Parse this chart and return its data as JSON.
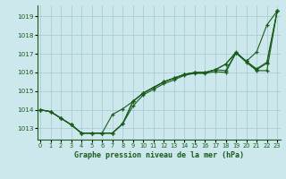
{
  "title": "Graphe pression niveau de la mer (hPa)",
  "bg_color": "#cce8ec",
  "grid_color": "#aacdd4",
  "line_color": "#1a5c1a",
  "x_ticks": [
    0,
    1,
    2,
    3,
    4,
    5,
    6,
    7,
    8,
    9,
    10,
    11,
    12,
    13,
    14,
    15,
    16,
    17,
    18,
    19,
    20,
    21,
    22,
    23
  ],
  "y_ticks": [
    1013,
    1014,
    1015,
    1016,
    1017,
    1018,
    1019
  ],
  "ylim": [
    1012.4,
    1019.6
  ],
  "xlim": [
    -0.3,
    23.3
  ],
  "series": [
    [
      1014.0,
      1013.9,
      1013.55,
      1013.2,
      1012.75,
      1012.75,
      1012.75,
      1012.75,
      1013.25,
      1014.2,
      1014.8,
      1015.1,
      1015.4,
      1015.6,
      1015.85,
      1015.95,
      1015.95,
      1016.05,
      1016.0,
      1017.05,
      1016.55,
      1016.1,
      1016.1,
      1019.3
    ],
    [
      1014.0,
      1013.9,
      1013.55,
      1013.2,
      1012.75,
      1012.75,
      1012.75,
      1012.75,
      1013.25,
      1014.45,
      1014.9,
      1015.2,
      1015.5,
      1015.7,
      1015.9,
      1016.0,
      1016.0,
      1016.15,
      1016.45,
      1017.05,
      1016.6,
      1016.15,
      1016.5,
      1019.3
    ],
    [
      1014.0,
      1013.9,
      1013.55,
      1013.2,
      1012.75,
      1012.75,
      1012.75,
      1013.75,
      1014.05,
      1014.45,
      1014.9,
      1015.2,
      1015.5,
      1015.7,
      1015.9,
      1016.0,
      1016.0,
      1016.15,
      1016.1,
      1017.05,
      1016.6,
      1016.2,
      1016.55,
      1019.3
    ],
    [
      1014.0,
      1013.9,
      1013.55,
      1013.2,
      1012.75,
      1012.75,
      1012.75,
      1012.75,
      1013.25,
      1014.45,
      1014.9,
      1015.2,
      1015.5,
      1015.7,
      1015.9,
      1016.0,
      1016.0,
      1016.15,
      1016.45,
      1017.1,
      1016.6,
      1017.1,
      1018.55,
      1019.3
    ]
  ]
}
